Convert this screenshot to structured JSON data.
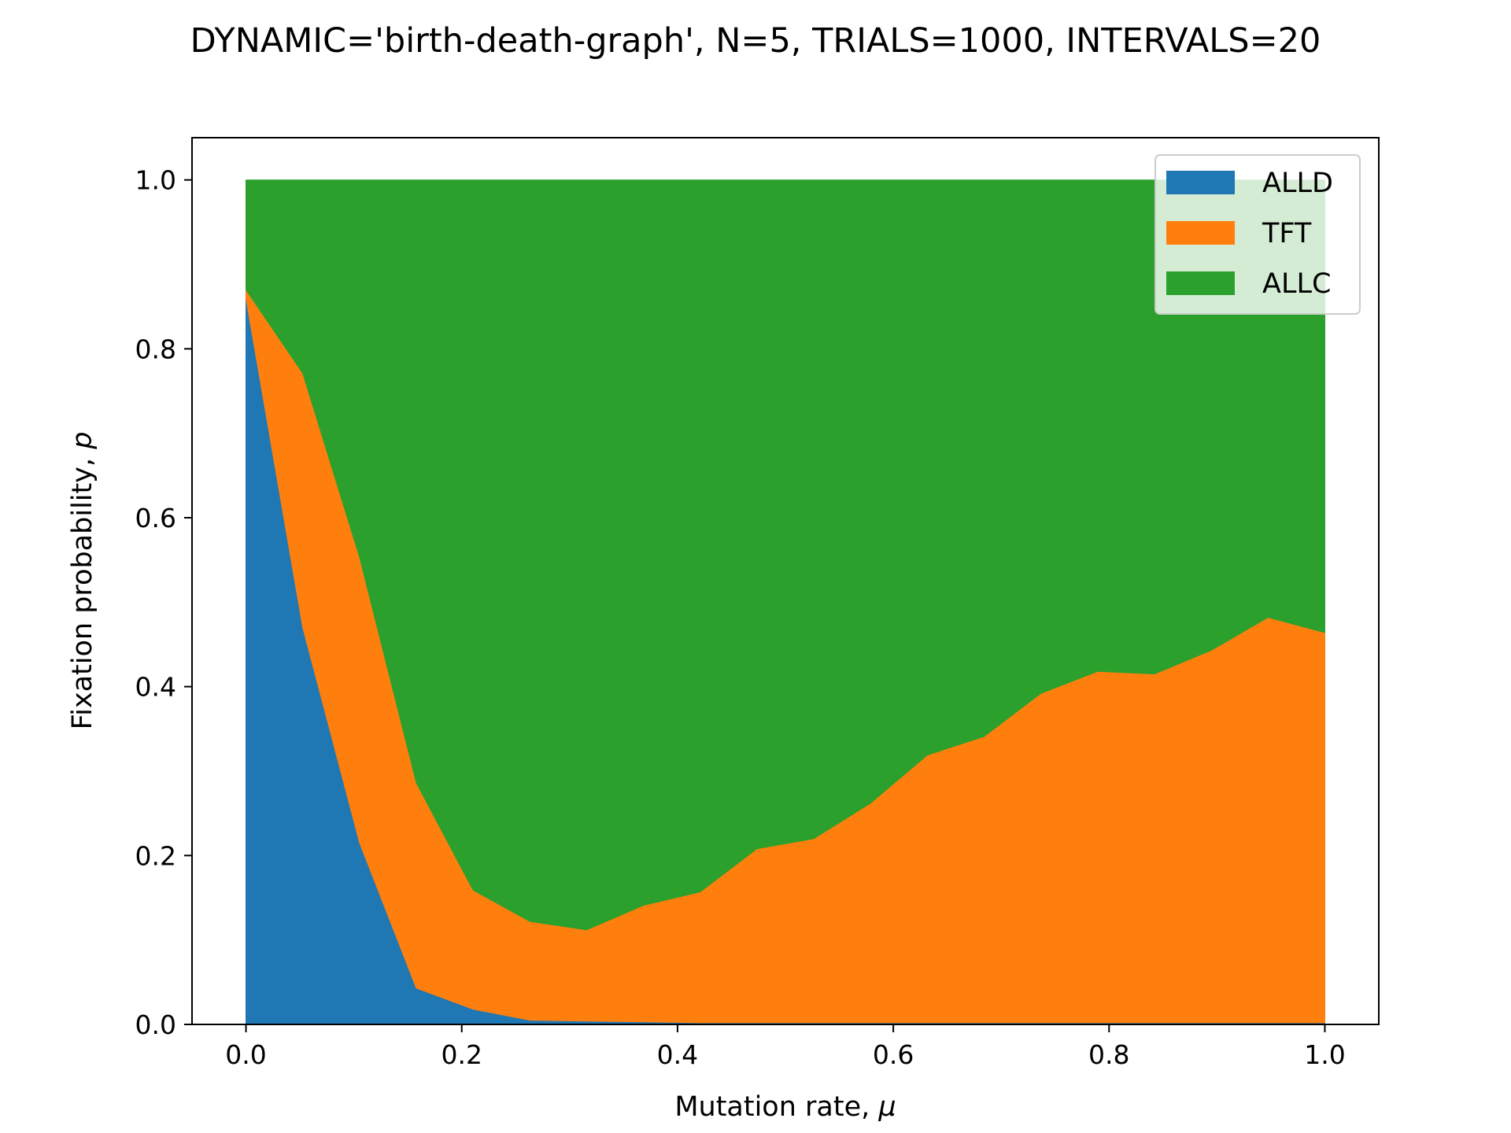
{
  "chart_data": {
    "type": "area",
    "stacked": true,
    "title": "DYNAMIC='birth-death-graph', N=5, TRIALS=1000, INTERVALS=20",
    "xlabel_text": "Mutation rate, ",
    "xlabel_symbol": "μ",
    "ylabel_text": "Fixation probability, ",
    "ylabel_symbol": "p",
    "xlim": [
      -0.05,
      1.05
    ],
    "ylim": [
      0.0,
      1.05
    ],
    "xticks": [
      0.0,
      0.2,
      0.4,
      0.6,
      0.8,
      1.0
    ],
    "xtick_labels": [
      "0.0",
      "0.2",
      "0.4",
      "0.6",
      "0.8",
      "1.0"
    ],
    "yticks": [
      0.0,
      0.2,
      0.4,
      0.6,
      0.8,
      1.0
    ],
    "ytick_labels": [
      "0.0",
      "0.2",
      "0.4",
      "0.6",
      "0.8",
      "1.0"
    ],
    "grid": false,
    "legend_position": "upper right",
    "x": [
      0.0,
      0.0526,
      0.1053,
      0.1579,
      0.2105,
      0.2632,
      0.3158,
      0.3684,
      0.4211,
      0.4737,
      0.5263,
      0.5789,
      0.6316,
      0.6842,
      0.7368,
      0.7895,
      0.8421,
      0.8947,
      0.9474,
      1.0
    ],
    "series": [
      {
        "name": "ALLD",
        "color": "#1f77b4",
        "values": [
          0.86,
          0.47,
          0.215,
          0.043,
          0.018,
          0.005,
          0.004,
          0.003,
          0.002,
          0.002,
          0.002,
          0.002,
          0.002,
          0.002,
          0.002,
          0.002,
          0.002,
          0.002,
          0.002,
          0.002
        ]
      },
      {
        "name": "TFT",
        "color": "#ff7f0e",
        "values": [
          0.01,
          0.301,
          0.338,
          0.243,
          0.141,
          0.117,
          0.108,
          0.138,
          0.155,
          0.206,
          0.218,
          0.26,
          0.317,
          0.339,
          0.39,
          0.416,
          0.413,
          0.441,
          0.48,
          0.462
        ]
      },
      {
        "name": "ALLC",
        "color": "#2ca02c",
        "values": [
          0.13,
          0.229,
          0.447,
          0.714,
          0.841,
          0.878,
          0.888,
          0.859,
          0.843,
          0.792,
          0.78,
          0.738,
          0.681,
          0.659,
          0.608,
          0.582,
          0.585,
          0.557,
          0.518,
          0.536
        ]
      }
    ]
  }
}
